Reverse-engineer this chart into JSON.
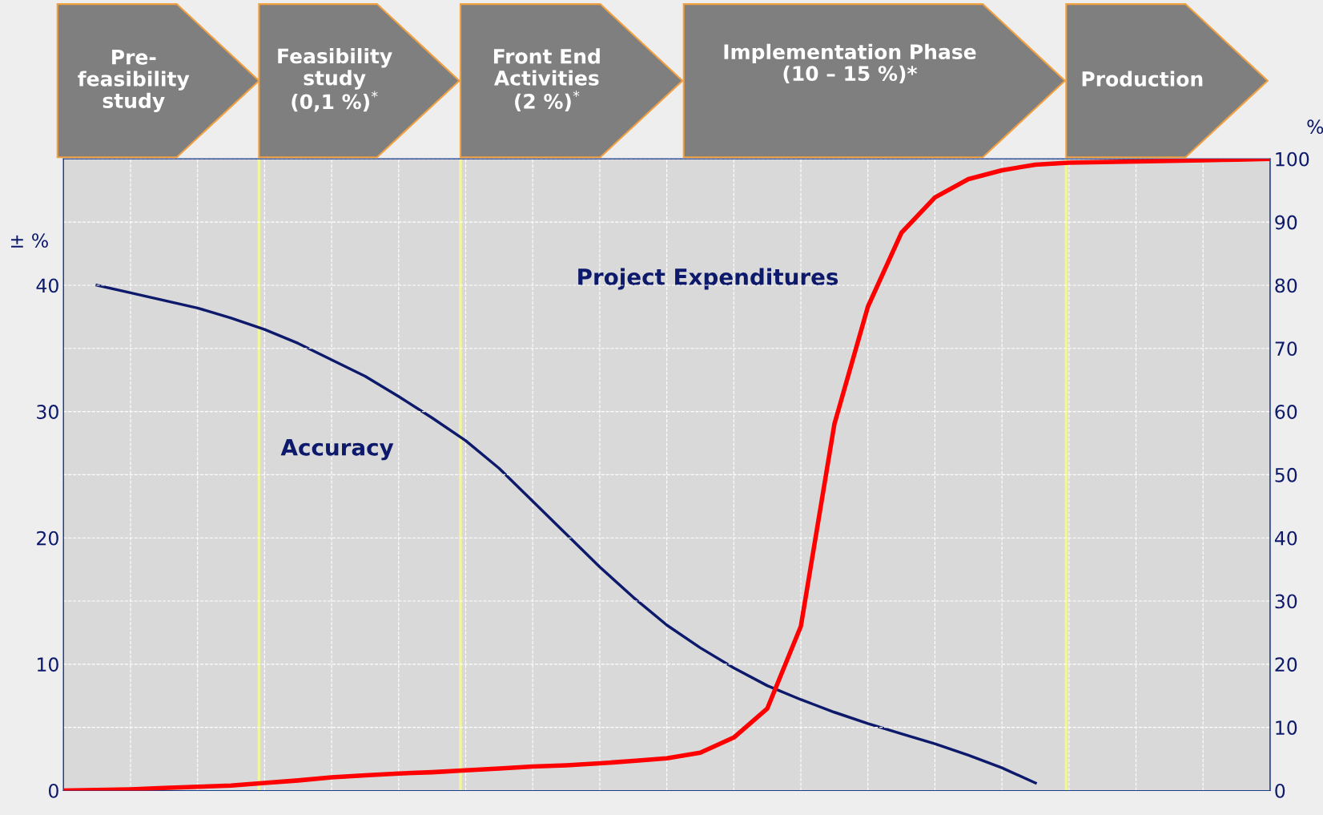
{
  "chart_data": {
    "type": "line",
    "categories": [
      null,
      null,
      null,
      null,
      null,
      null,
      null,
      null,
      null,
      null,
      null,
      null,
      null,
      null,
      null,
      null,
      null,
      null,
      null,
      null,
      null,
      null,
      null,
      null,
      null,
      null,
      null,
      null,
      null,
      null,
      null,
      null,
      null,
      null,
      null,
      null,
      null
    ],
    "series": [
      {
        "name": "Accuracy",
        "color": "#0d1a6b",
        "values": [
          null,
          40,
          39.4,
          38.8,
          38.2,
          37.4,
          36.5,
          35.4,
          34.1,
          32.8,
          31.2,
          29.5,
          27.7,
          25.5,
          22.9,
          20.3,
          17.7,
          15.3,
          13.1,
          11.3,
          9.7,
          8.3,
          7.2,
          6.2,
          5.3,
          4.5,
          3.7,
          2.8,
          1.8,
          0.6,
          null,
          null,
          null,
          null,
          null,
          null,
          null
        ]
      },
      {
        "name": "Project Expenditures",
        "color": "#ff0000",
        "axis": "y2",
        "values": [
          0,
          0.1,
          0.2,
          0.4,
          0.6,
          0.8,
          1.2,
          1.6,
          2.1,
          2.4,
          2.7,
          2.9,
          3.2,
          3.5,
          3.8,
          4.0,
          4.3,
          4.7,
          5.1,
          6.0,
          8.4,
          13,
          26,
          58,
          76.6,
          88.3,
          93.9,
          96.8,
          98.2,
          99.1,
          99.4,
          99.5,
          99.6,
          99.7,
          99.8,
          99.9,
          100
        ]
      }
    ],
    "ylabel": "± %",
    "y2label": "%",
    "ylim": [
      0,
      50
    ],
    "yticks": [
      0,
      10,
      20,
      30,
      40
    ],
    "y2lim": [
      0,
      100
    ],
    "y2ticks": [
      0,
      10,
      20,
      30,
      40,
      50,
      60,
      70,
      80,
      90,
      100
    ],
    "annotations": [
      "Pre-\nfeasibility\nstudy",
      "Feasibility\nstudy\n(0,1 %)$^{*}$",
      "Front End\nActivities\n(2 %)$^{*}$",
      "Implementation Phase\n(10 – 15 %)*",
      "Production"
    ],
    "grid": true,
    "marker": "none",
    "line_style": "solid"
  }
}
